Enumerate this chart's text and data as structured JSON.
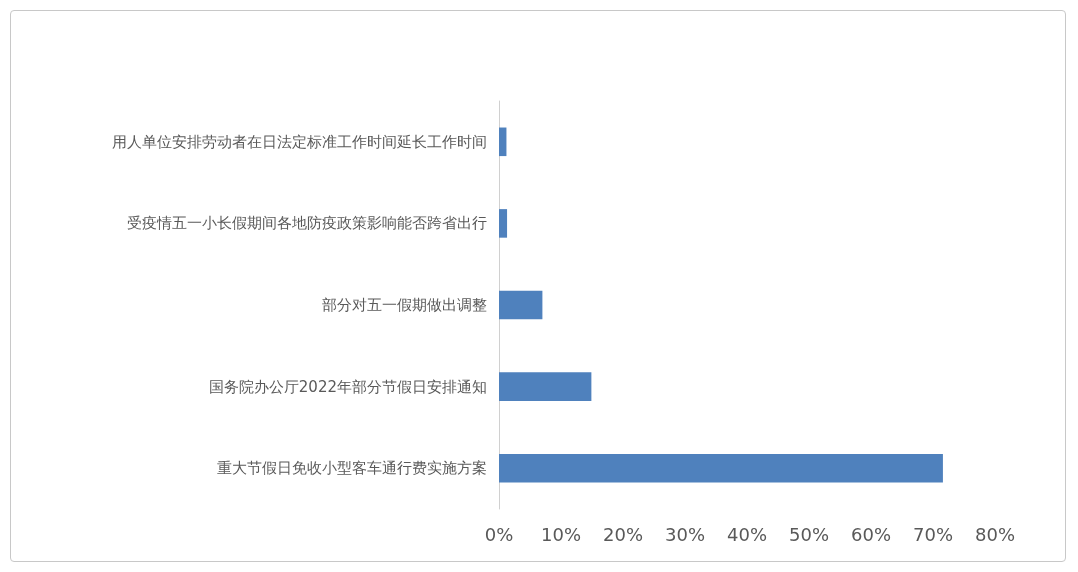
{
  "chart_data": {
    "type": "bar",
    "orientation": "horizontal",
    "categories": [
      "用人单位安排劳动者在日法定标准工作时间延长工作时间",
      "受疫情五一小长假期间各地防疫政策影响能否跨省出行",
      "部分对五一假期做出调整",
      "国务院办公厅2022年部分节假日安排通知",
      "重大节假日免收小型客车通行费实施方案"
    ],
    "values": [
      1.2,
      1.3,
      7,
      14.9,
      71.6
    ],
    "color": "#4f81bd",
    "xlim": [
      0,
      80
    ],
    "xticks": [
      {
        "value": 0,
        "label": "0%"
      },
      {
        "value": 10,
        "label": "10%"
      },
      {
        "value": 20,
        "label": "20%"
      },
      {
        "value": 30,
        "label": "30%"
      },
      {
        "value": 40,
        "label": "40%"
      },
      {
        "value": 50,
        "label": "50%"
      },
      {
        "value": 60,
        "label": "60%"
      },
      {
        "value": 70,
        "label": "70%"
      },
      {
        "value": 80,
        "label": "80%"
      }
    ],
    "grid": false
  }
}
